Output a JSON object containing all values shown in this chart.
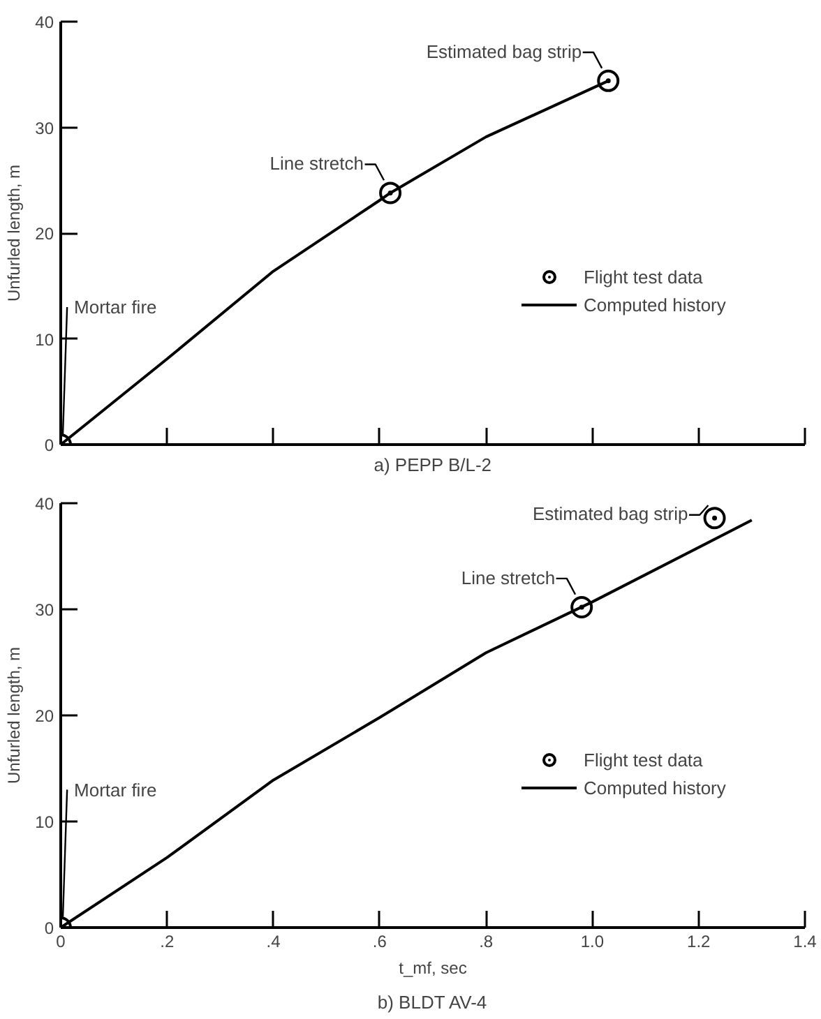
{
  "chart_data": [
    {
      "type": "line",
      "title": "a) PEPP B/L-2",
      "ylabel": "Unfurled length, m",
      "xlim": [
        0,
        1.4
      ],
      "ylim": [
        0,
        40
      ],
      "xticks": [
        {
          "value": 0,
          "label": null
        },
        {
          "value": 0.2,
          "label": null
        },
        {
          "value": 0.4,
          "label": null
        },
        {
          "value": 0.6,
          "label": null
        },
        {
          "value": 0.8,
          "label": null
        },
        {
          "value": 1.0,
          "label": null
        },
        {
          "value": 1.2,
          "label": null
        },
        {
          "value": 1.4,
          "label": null
        }
      ],
      "yticks": [
        0,
        10,
        20,
        30,
        40
      ],
      "tick_labels": "y",
      "legend": "right",
      "grid": false,
      "series": [
        {
          "name": "Flight test data",
          "type": "scatter",
          "marker": "circle",
          "color": "#000000",
          "x": [
            0,
            0.62,
            1.03
          ],
          "values": [
            0,
            23.8,
            34.4
          ]
        },
        {
          "name": "Computed history",
          "color": "#000000",
          "x": [
            0,
            0.2,
            0.4,
            0.6,
            0.62,
            0.8,
            1.03
          ],
          "values": [
            0,
            8.1,
            16.4,
            23.1,
            23.8,
            29.1,
            34.4
          ]
        }
      ],
      "annotations": [
        {
          "text": "Mortar fire",
          "x": 0,
          "y": 0
        },
        {
          "text": "Line stretch",
          "x": 0.62,
          "y": 23.8
        },
        {
          "text": "Estimated bag strip",
          "x": 1.03,
          "y": 34.4
        }
      ]
    },
    {
      "type": "line",
      "title": "b) BLDT AV-4",
      "xlabel": "t_mf, sec",
      "ylabel": "Unfurled length, m",
      "xlim": [
        0,
        1.4
      ],
      "ylim": [
        0,
        40
      ],
      "xticks": [
        0,
        {
          "value": 0.2,
          "label": ".2"
        },
        {
          "value": 0.4,
          "label": ".4"
        },
        {
          "value": 0.6,
          "label": ".6"
        },
        {
          "value": 0.8,
          "label": ".8"
        },
        {
          "value": 1.0,
          "label": "1.0"
        },
        {
          "value": 1.2,
          "label": "1.2"
        },
        {
          "value": 1.4,
          "label": "1.4"
        }
      ],
      "yticks": [
        0,
        10,
        20,
        30,
        40
      ],
      "legend": "right",
      "grid": false,
      "series": [
        {
          "name": "Flight test data",
          "type": "scatter",
          "marker": "circle",
          "color": "#000000",
          "x": [
            0,
            0.98,
            1.23
          ],
          "values": [
            0,
            30.2,
            38.6
          ]
        },
        {
          "name": "Computed history",
          "color": "#000000",
          "x": [
            0,
            0.2,
            0.4,
            0.6,
            0.8,
            1.0,
            1.3
          ],
          "values": [
            0,
            6.6,
            13.9,
            19.8,
            25.9,
            30.7,
            38.4
          ]
        }
      ],
      "annotations": [
        {
          "text": "Mortar fire",
          "x": 0,
          "y": 0
        },
        {
          "text": "Line stretch",
          "x": 0.98,
          "y": 30.2
        },
        {
          "text": "Estimated bag strip",
          "x": 1.23,
          "y": 38.6
        }
      ]
    }
  ]
}
